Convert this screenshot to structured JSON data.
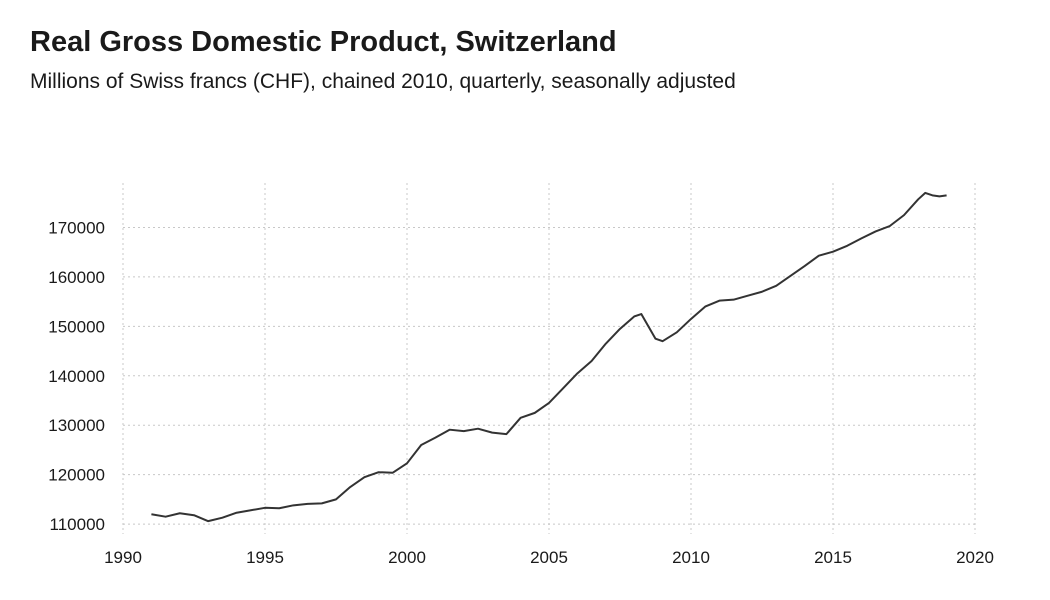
{
  "chart_data": {
    "type": "line",
    "title": "Real Gross Domestic Product, Switzerland",
    "subtitle": "Millions of Swiss francs (CHF), chained 2010, quarterly, seasonally adjusted",
    "xlabel": "",
    "ylabel": "",
    "xlim": [
      1990,
      2020
    ],
    "ylim": [
      108000,
      179000
    ],
    "x_ticks": [
      1990,
      1995,
      2000,
      2005,
      2010,
      2015,
      2020
    ],
    "y_ticks": [
      110000,
      120000,
      130000,
      140000,
      150000,
      160000,
      170000
    ],
    "grid": true,
    "legend": "none",
    "line_color": "#333333",
    "series": [
      {
        "x": [
          1991.0,
          1991.5,
          1992.0,
          1992.5,
          1993.0,
          1993.5,
          1994.0,
          1994.5,
          1995.0,
          1995.5,
          1996.0,
          1996.5,
          1997.0,
          1997.5,
          1998.0,
          1998.5,
          1999.0,
          1999.5,
          2000.0,
          2000.5,
          2001.0,
          2001.5,
          2002.0,
          2002.5,
          2003.0,
          2003.5,
          2004.0,
          2004.5,
          2005.0,
          2005.5,
          2006.0,
          2006.5,
          2007.0,
          2007.5,
          2008.0,
          2008.25,
          2008.5,
          2008.75,
          2009.0,
          2009.5,
          2010.0,
          2010.5,
          2011.0,
          2011.5,
          2012.0,
          2012.5,
          2013.0,
          2013.5,
          2014.0,
          2014.5,
          2015.0,
          2015.5,
          2016.0,
          2016.5,
          2017.0,
          2017.5,
          2018.0,
          2018.25,
          2018.5,
          2018.75,
          2019.0
        ],
        "values": [
          112000,
          111500,
          112200,
          111800,
          110600,
          111300,
          112300,
          112800,
          113300,
          113200,
          113800,
          114100,
          114200,
          115000,
          117500,
          119500,
          120500,
          120400,
          122300,
          126000,
          127500,
          129100,
          128800,
          129300,
          128500,
          128200,
          131500,
          132500,
          134500,
          137500,
          140500,
          143000,
          146500,
          149500,
          152000,
          152500,
          150000,
          147500,
          147000,
          148800,
          151500,
          154000,
          155200,
          155400,
          156200,
          157000,
          158200,
          160200,
          162200,
          164300,
          165100,
          166300,
          167800,
          169200,
          170300,
          172500,
          175700,
          177000,
          176500,
          176300,
          176500
        ]
      }
    ]
  }
}
